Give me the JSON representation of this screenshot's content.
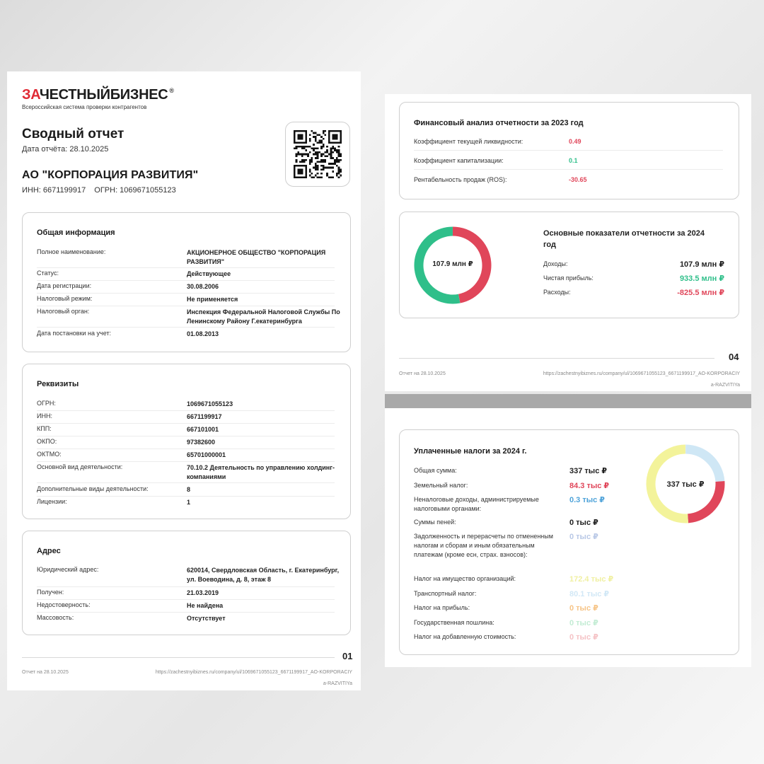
{
  "colors": {
    "brand_red": "#e02b35",
    "red": "#e0465a",
    "green": "#2fbf8a",
    "blue": "#4fa3d9",
    "yellow": "#f3f39a",
    "light_blue": "#cfe7f5",
    "dark": "#222222"
  },
  "page1": {
    "logo": {
      "za": "ЗА",
      "rest": "ЧЕСТНЫЙБИЗНЕС",
      "reg": "®"
    },
    "logo_sub": "Всероссийская система проверки контрагентов",
    "title": "Сводный отчет",
    "date_line": "Дата отчёта: 28.10.2025",
    "company_name": "АО \"КОРПОРАЦИЯ РАЗВИТИЯ\"",
    "inn_line": "ИНН: 6671199917",
    "ogrn_line": "ОГРН: 1069671055123",
    "general": {
      "title": "Общая информация",
      "rows": [
        {
          "k": "Полное наименование:",
          "v": "АКЦИОНЕРНОЕ ОБЩЕСТВО \"КОРПОРАЦИЯ РАЗВИТИЯ\""
        },
        {
          "k": "Статус:",
          "v": "Действующее"
        },
        {
          "k": "Дата регистрации:",
          "v": "30.08.2006"
        },
        {
          "k": "Налоговый режим:",
          "v": "Не применяется"
        },
        {
          "k": "Налоговый орган:",
          "v": "Инспекция Федеральной Налоговой Службы По Ленинскому Району Г.екатеринбурга"
        },
        {
          "k": "Дата постановки на учет:",
          "v": "01.08.2013"
        }
      ]
    },
    "requisites": {
      "title": "Реквизиты",
      "rows": [
        {
          "k": "ОГРН:",
          "v": "1069671055123"
        },
        {
          "k": "ИНН:",
          "v": "6671199917"
        },
        {
          "k": "КПП:",
          "v": "667101001"
        },
        {
          "k": "ОКПО:",
          "v": "97382600"
        },
        {
          "k": "ОКТМО:",
          "v": "65701000001"
        },
        {
          "k": "Основной вид деятельности:",
          "v": "70.10.2 Деятельность по управлению холдинг-компаниями"
        },
        {
          "k": "Дополнительные виды деятельности:",
          "v": "8"
        },
        {
          "k": "Лицензии:",
          "v": "1"
        }
      ]
    },
    "address": {
      "title": "Адрес",
      "rows": [
        {
          "k": "Юридический адрес:",
          "v": "620014, Свердловская Область, г. Екатеринбург, ул. Воеводина, д. 8, этаж 8"
        },
        {
          "k": "Получен:",
          "v": "21.03.2019"
        },
        {
          "k": "Недостоверность:",
          "v": "Не найдена"
        },
        {
          "k": "Массовость:",
          "v": "Отсутствует"
        }
      ]
    },
    "page_number": "01",
    "footer_date": "Отчет на 28.10.2025",
    "footer_url_1": "https://zachestnyibiznes.ru/company/ul/1069671055123_6671199917_AO-KORPORACIY",
    "footer_url_2": "a-RAZVITIYa"
  },
  "page2": {
    "fin_title": "Финансовый анализ отчетности за 2023 год",
    "fin_rows": [
      {
        "k": "Коэффициент текущей ликвидности:",
        "v": "0.49"
      },
      {
        "k": "Коэффициент капитализации:",
        "v": "0.1"
      },
      {
        "k": "Рентабельность продаж (ROS):",
        "v": "-30.65"
      }
    ],
    "metrics_title_1": "Основные показатели отчетности за 2024",
    "metrics_title_2": "год",
    "donut_label": "107.9 млн ₽",
    "metrics": [
      {
        "k": "Доходы:",
        "v": "107.9 млн ₽"
      },
      {
        "k": "Чистая прибыль:",
        "v": "933.5 млн ₽"
      },
      {
        "k": "Расходы:",
        "v": "-825.5 млн ₽"
      }
    ],
    "page_number": "04",
    "footer_date": "Отчет на 28.10.2025",
    "footer_url_1": "https://zachestnyibiznes.ru/company/ul/1069671055123_6671199917_AO-KORPORACIY",
    "footer_url_2": "a-RAZVITIYa"
  },
  "page3": {
    "tax_title": "Уплаченные налоги за 2024 г.",
    "donut_label": "337 тыс ₽",
    "taxes": [
      {
        "k": "Общая сумма:",
        "v": "337 тыс ₽"
      },
      {
        "k": "Земельный налог:",
        "v": "84.3 тыс ₽"
      },
      {
        "k": "Неналоговые доходы, администрируемые налоговыми органами:",
        "v": "0.3 тыс ₽"
      },
      {
        "k": "Суммы пеней:",
        "v": "0 тыс ₽"
      },
      {
        "k": "Задолженность и перерасчеты по отмененным налогам и сборам и иным обязательным платежам (кроме есн, страх. взносов):",
        "v": "0 тыс ₽"
      },
      {
        "k": "Налог на имущество организаций:",
        "v": "172.4 тыс ₽"
      },
      {
        "k": "Транспортный налог:",
        "v": "80.1 тыс ₽"
      },
      {
        "k": "Налог на прибыль:",
        "v": "0 тыс ₽"
      },
      {
        "k": "Государственная пошлина:",
        "v": "0 тыс ₽"
      },
      {
        "k": "Налог на добавленную стоимость:",
        "v": "0 тыс ₽"
      }
    ]
  }
}
